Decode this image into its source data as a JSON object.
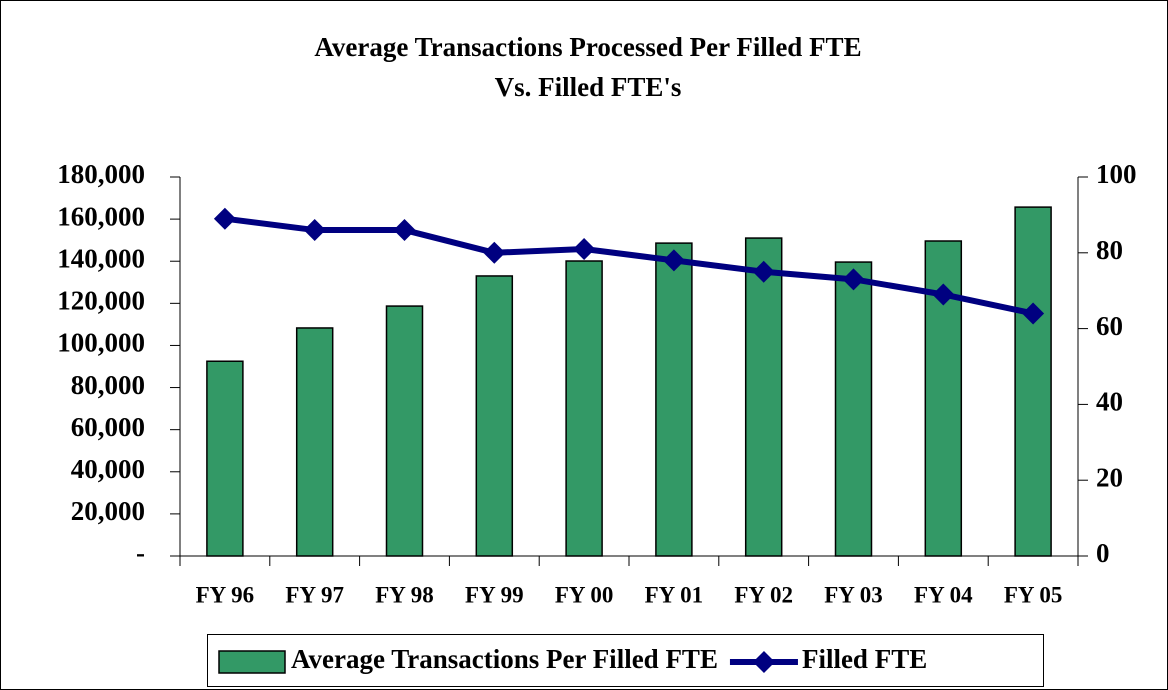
{
  "chart_data": {
    "type": "bar_line",
    "title": [
      "Average Transactions Processed Per Filled FTE",
      "Vs. Filled FTE's"
    ],
    "categories": [
      "FY 96",
      "FY 97",
      "FY 98",
      "FY 99",
      "FY 00",
      "FY 01",
      "FY 02",
      "FY 03",
      "FY 04",
      "FY 05"
    ],
    "series": [
      {
        "name": "Average Transactions Per Filled FTE",
        "type": "bar",
        "color": "#339966",
        "values": [
          92500,
          108300,
          118700,
          133000,
          140100,
          148600,
          151000,
          139600,
          149600,
          165700
        ]
      },
      {
        "name": "Filled FTE",
        "type": "line",
        "axis": "y2",
        "color": "#000080",
        "values": [
          89,
          86,
          86,
          80,
          81,
          78,
          75,
          73,
          69,
          64
        ]
      }
    ],
    "ylim": [
      0,
      180000
    ],
    "yticks": [
      {
        "value": 0,
        "label": "-"
      },
      {
        "value": 20000,
        "label": "20,000"
      },
      {
        "value": 40000,
        "label": "40,000"
      },
      {
        "value": 60000,
        "label": "60,000"
      },
      {
        "value": 80000,
        "label": "80,000"
      },
      {
        "value": 100000,
        "label": "100,000"
      },
      {
        "value": 120000,
        "label": "120,000"
      },
      {
        "value": 140000,
        "label": "140,000"
      },
      {
        "value": 160000,
        "label": "160,000"
      },
      {
        "value": 180000,
        "label": "180,000"
      }
    ],
    "y2lim": [
      0,
      100
    ],
    "y2ticks": [
      0,
      20,
      40,
      60,
      80,
      100
    ],
    "legend": "bottom"
  }
}
